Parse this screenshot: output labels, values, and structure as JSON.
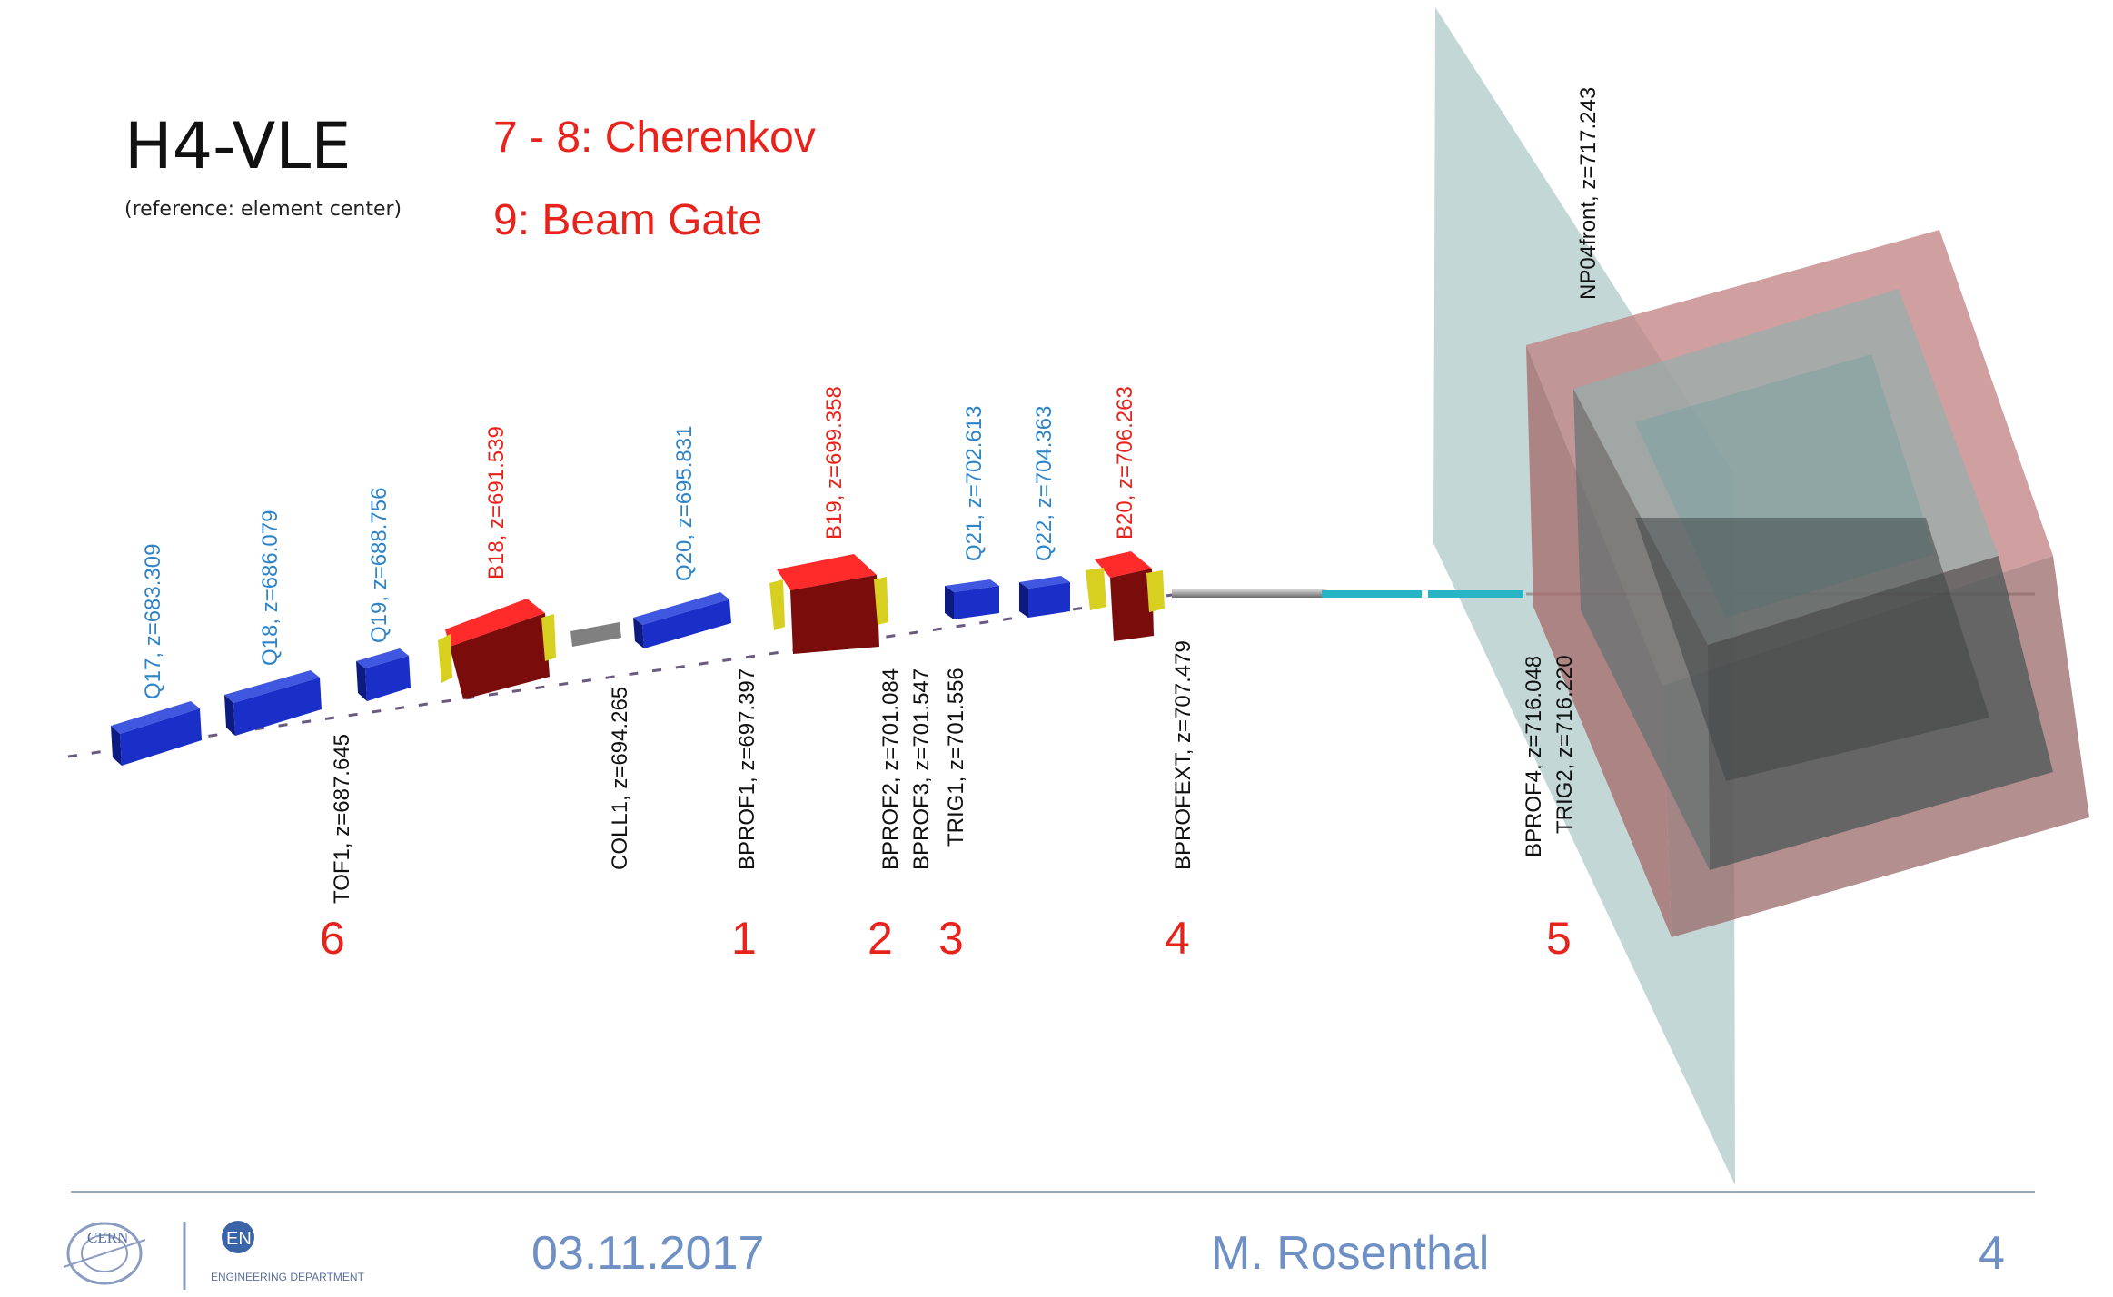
{
  "header": {
    "title": "H4-VLE",
    "subtitle": "(reference: element center)",
    "notes": [
      "7 - 8: Cherenkov",
      "9: Beam Gate"
    ]
  },
  "colors": {
    "quadrupole": "#1a2fc8",
    "dipole": "#e8121c",
    "blue_label": "#2f84c8",
    "red_label": "#e8231c",
    "black_label": "#111111",
    "plane": "#9bbcbc",
    "cryostat": "#b97878",
    "footer": "#6f90c4"
  },
  "beamline": {
    "elements_above": [
      {
        "label": "Q17, z=683.309",
        "color": "blue"
      },
      {
        "label": "Q18, z=686.079",
        "color": "blue"
      },
      {
        "label": "Q19, z=688.756",
        "color": "blue"
      },
      {
        "label": "B18, z=691.539",
        "color": "red"
      },
      {
        "label": "Q20, z=695.831",
        "color": "blue"
      },
      {
        "label": "B19, z=699.358",
        "color": "red"
      },
      {
        "label": "Q21, z=702.613",
        "color": "blue"
      },
      {
        "label": "Q22, z=704.363",
        "color": "blue"
      },
      {
        "label": "B20, z=706.263",
        "color": "red"
      },
      {
        "label": "NP04front, z=717.243",
        "color": "black"
      }
    ],
    "elements_below": [
      {
        "label": "TOF1, z=687.645"
      },
      {
        "label": "COLL1, z=694.265"
      },
      {
        "label": "BPROF1, z=697.397"
      },
      {
        "label": "BPROF2, z=701.084"
      },
      {
        "label": "BPROF3, z=701.547"
      },
      {
        "label": "TRIG1, z=701.556"
      },
      {
        "label": "BPROFEXT, z=707.479"
      },
      {
        "label": "BPROF4, z=716.048"
      },
      {
        "label": "TRIG2, z=716.220"
      }
    ],
    "markers": [
      "6",
      "1",
      "2",
      "3",
      "4",
      "5"
    ]
  },
  "footer": {
    "logo_cern": "CERN",
    "logo_en": "EN",
    "logo_en_text": "ENGINEERING DEPARTMENT",
    "date": "03.11.2017",
    "author": "M. Rosenthal",
    "page": "4"
  }
}
